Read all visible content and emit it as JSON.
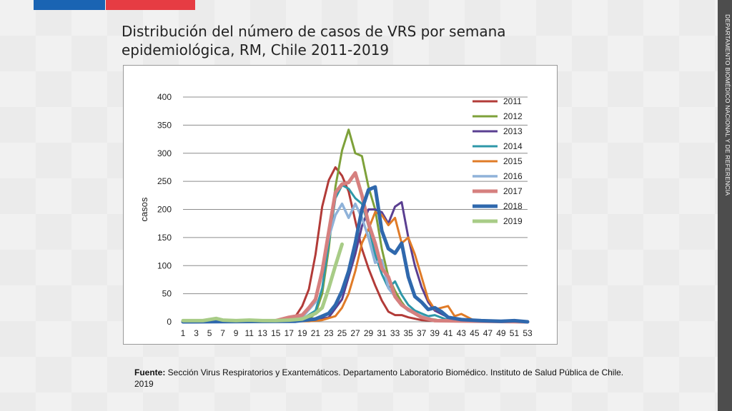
{
  "title": "Distribución del número de casos de VRS por semana epidemiológica, RM, Chile 2011-2019",
  "side_label": "DEPARTAMENTO BIOMÉDICO NACIONAL Y DE REFERENCIA",
  "source_label": "Fuente:",
  "source_text": " Sección Virus Respiratorios y Exantemáticos. Departamento Laboratorio Biomédico. Instituto de Salud Pública de Chile. 2019",
  "chart_data": {
    "type": "line",
    "ylabel": "casos",
    "ylim": [
      0,
      400
    ],
    "yticks": [
      0,
      50,
      100,
      150,
      200,
      250,
      300,
      350,
      400
    ],
    "xlim": [
      1,
      53
    ],
    "xticks": [
      1,
      3,
      5,
      7,
      9,
      11,
      13,
      15,
      17,
      19,
      21,
      23,
      25,
      27,
      29,
      31,
      33,
      35,
      37,
      39,
      41,
      43,
      45,
      47,
      49,
      51,
      53
    ],
    "grid": "horizontal",
    "legend_position": "right",
    "series": [
      {
        "name": "2011",
        "color": "#b23b38",
        "points": [
          [
            1,
            2
          ],
          [
            5,
            2
          ],
          [
            10,
            2
          ],
          [
            15,
            3
          ],
          [
            17,
            6
          ],
          [
            18,
            10
          ],
          [
            19,
            28
          ],
          [
            20,
            58
          ],
          [
            21,
            120
          ],
          [
            22,
            205
          ],
          [
            23,
            252
          ],
          [
            24,
            275
          ],
          [
            25,
            260
          ],
          [
            26,
            232
          ],
          [
            27,
            180
          ],
          [
            28,
            130
          ],
          [
            29,
            95
          ],
          [
            30,
            65
          ],
          [
            31,
            38
          ],
          [
            32,
            18
          ],
          [
            33,
            12
          ],
          [
            34,
            12
          ],
          [
            35,
            8
          ],
          [
            37,
            3
          ],
          [
            40,
            1
          ],
          [
            53,
            0
          ]
        ]
      },
      {
        "name": "2012",
        "color": "#7ea13a",
        "points": [
          [
            1,
            1
          ],
          [
            10,
            1
          ],
          [
            18,
            2
          ],
          [
            20,
            5
          ],
          [
            21,
            15
          ],
          [
            22,
            50
          ],
          [
            23,
            130
          ],
          [
            24,
            240
          ],
          [
            25,
            305
          ],
          [
            26,
            342
          ],
          [
            27,
            300
          ],
          [
            28,
            295
          ],
          [
            29,
            240
          ],
          [
            30,
            200
          ],
          [
            31,
            130
          ],
          [
            32,
            80
          ],
          [
            33,
            55
          ],
          [
            34,
            35
          ],
          [
            35,
            20
          ],
          [
            37,
            8
          ],
          [
            40,
            2
          ],
          [
            53,
            0
          ]
        ]
      },
      {
        "name": "2013",
        "color": "#5a3f91",
        "points": [
          [
            1,
            0
          ],
          [
            18,
            1
          ],
          [
            21,
            3
          ],
          [
            23,
            8
          ],
          [
            25,
            40
          ],
          [
            26,
            80
          ],
          [
            27,
            120
          ],
          [
            28,
            170
          ],
          [
            29,
            200
          ],
          [
            30,
            200
          ],
          [
            31,
            195
          ],
          [
            32,
            175
          ],
          [
            33,
            205
          ],
          [
            34,
            213
          ],
          [
            35,
            150
          ],
          [
            36,
            100
          ],
          [
            37,
            62
          ],
          [
            38,
            35
          ],
          [
            39,
            20
          ],
          [
            41,
            8
          ],
          [
            43,
            3
          ],
          [
            53,
            0
          ]
        ]
      },
      {
        "name": "2014",
        "color": "#2e97a8",
        "points": [
          [
            1,
            0
          ],
          [
            17,
            2
          ],
          [
            19,
            5
          ],
          [
            21,
            20
          ],
          [
            22,
            60
          ],
          [
            23,
            140
          ],
          [
            24,
            220
          ],
          [
            25,
            243
          ],
          [
            26,
            237
          ],
          [
            27,
            220
          ],
          [
            28,
            210
          ],
          [
            29,
            170
          ],
          [
            30,
            120
          ],
          [
            31,
            85
          ],
          [
            32,
            60
          ],
          [
            33,
            72
          ],
          [
            34,
            48
          ],
          [
            35,
            30
          ],
          [
            36,
            20
          ],
          [
            37,
            15
          ],
          [
            38,
            10
          ],
          [
            39,
            12
          ],
          [
            41,
            3
          ],
          [
            53,
            0
          ]
        ]
      },
      {
        "name": "2015",
        "color": "#e07b27",
        "points": [
          [
            1,
            0
          ],
          [
            20,
            1
          ],
          [
            22,
            3
          ],
          [
            24,
            10
          ],
          [
            25,
            25
          ],
          [
            26,
            50
          ],
          [
            27,
            90
          ],
          [
            28,
            140
          ],
          [
            29,
            165
          ],
          [
            30,
            195
          ],
          [
            31,
            190
          ],
          [
            32,
            172
          ],
          [
            33,
            185
          ],
          [
            34,
            140
          ],
          [
            35,
            150
          ],
          [
            36,
            120
          ],
          [
            37,
            80
          ],
          [
            38,
            40
          ],
          [
            39,
            22
          ],
          [
            40,
            25
          ],
          [
            41,
            28
          ],
          [
            42,
            10
          ],
          [
            43,
            14
          ],
          [
            44,
            8
          ],
          [
            45,
            2
          ],
          [
            53,
            0
          ]
        ]
      },
      {
        "name": "2016",
        "color": "#8fb2d9",
        "points": [
          [
            1,
            0
          ],
          [
            16,
            2
          ],
          [
            19,
            8
          ],
          [
            21,
            35
          ],
          [
            22,
            90
          ],
          [
            23,
            150
          ],
          [
            24,
            190
          ],
          [
            25,
            210
          ],
          [
            26,
            185
          ],
          [
            27,
            210
          ],
          [
            28,
            185
          ],
          [
            29,
            150
          ],
          [
            30,
            105
          ],
          [
            31,
            110
          ],
          [
            32,
            60
          ],
          [
            33,
            45
          ],
          [
            34,
            30
          ],
          [
            35,
            20
          ],
          [
            37,
            10
          ],
          [
            39,
            3
          ],
          [
            53,
            0
          ]
        ]
      },
      {
        "name": "2017",
        "color": "#d6807f",
        "points": [
          [
            1,
            0
          ],
          [
            15,
            2
          ],
          [
            17,
            8
          ],
          [
            19,
            12
          ],
          [
            20,
            25
          ],
          [
            21,
            40
          ],
          [
            22,
            90
          ],
          [
            23,
            160
          ],
          [
            24,
            230
          ],
          [
            25,
            245
          ],
          [
            26,
            248
          ],
          [
            27,
            265
          ],
          [
            28,
            225
          ],
          [
            29,
            175
          ],
          [
            30,
            140
          ],
          [
            31,
            95
          ],
          [
            32,
            80
          ],
          [
            33,
            45
          ],
          [
            34,
            30
          ],
          [
            35,
            22
          ],
          [
            37,
            8
          ],
          [
            39,
            2
          ],
          [
            53,
            0
          ]
        ]
      },
      {
        "name": "2018",
        "color": "#2f68ad",
        "points": [
          [
            1,
            0
          ],
          [
            18,
            1
          ],
          [
            21,
            5
          ],
          [
            23,
            15
          ],
          [
            24,
            30
          ],
          [
            25,
            55
          ],
          [
            26,
            90
          ],
          [
            27,
            140
          ],
          [
            28,
            200
          ],
          [
            29,
            235
          ],
          [
            30,
            240
          ],
          [
            31,
            162
          ],
          [
            32,
            130
          ],
          [
            33,
            122
          ],
          [
            34,
            140
          ],
          [
            35,
            80
          ],
          [
            36,
            45
          ],
          [
            37,
            35
          ],
          [
            38,
            22
          ],
          [
            39,
            25
          ],
          [
            40,
            18
          ],
          [
            41,
            8
          ],
          [
            43,
            4
          ],
          [
            46,
            2
          ],
          [
            49,
            1
          ],
          [
            51,
            2
          ],
          [
            53,
            0
          ]
        ]
      },
      {
        "name": "2019",
        "color": "#a8cc87",
        "points": [
          [
            1,
            2
          ],
          [
            4,
            2
          ],
          [
            6,
            6
          ],
          [
            7,
            3
          ],
          [
            9,
            2
          ],
          [
            11,
            3
          ],
          [
            13,
            2
          ],
          [
            15,
            2
          ],
          [
            17,
            3
          ],
          [
            19,
            5
          ],
          [
            20,
            10
          ],
          [
            21,
            15
          ],
          [
            22,
            25
          ],
          [
            23,
            60
          ],
          [
            24,
            100
          ],
          [
            25,
            138
          ]
        ]
      }
    ]
  }
}
